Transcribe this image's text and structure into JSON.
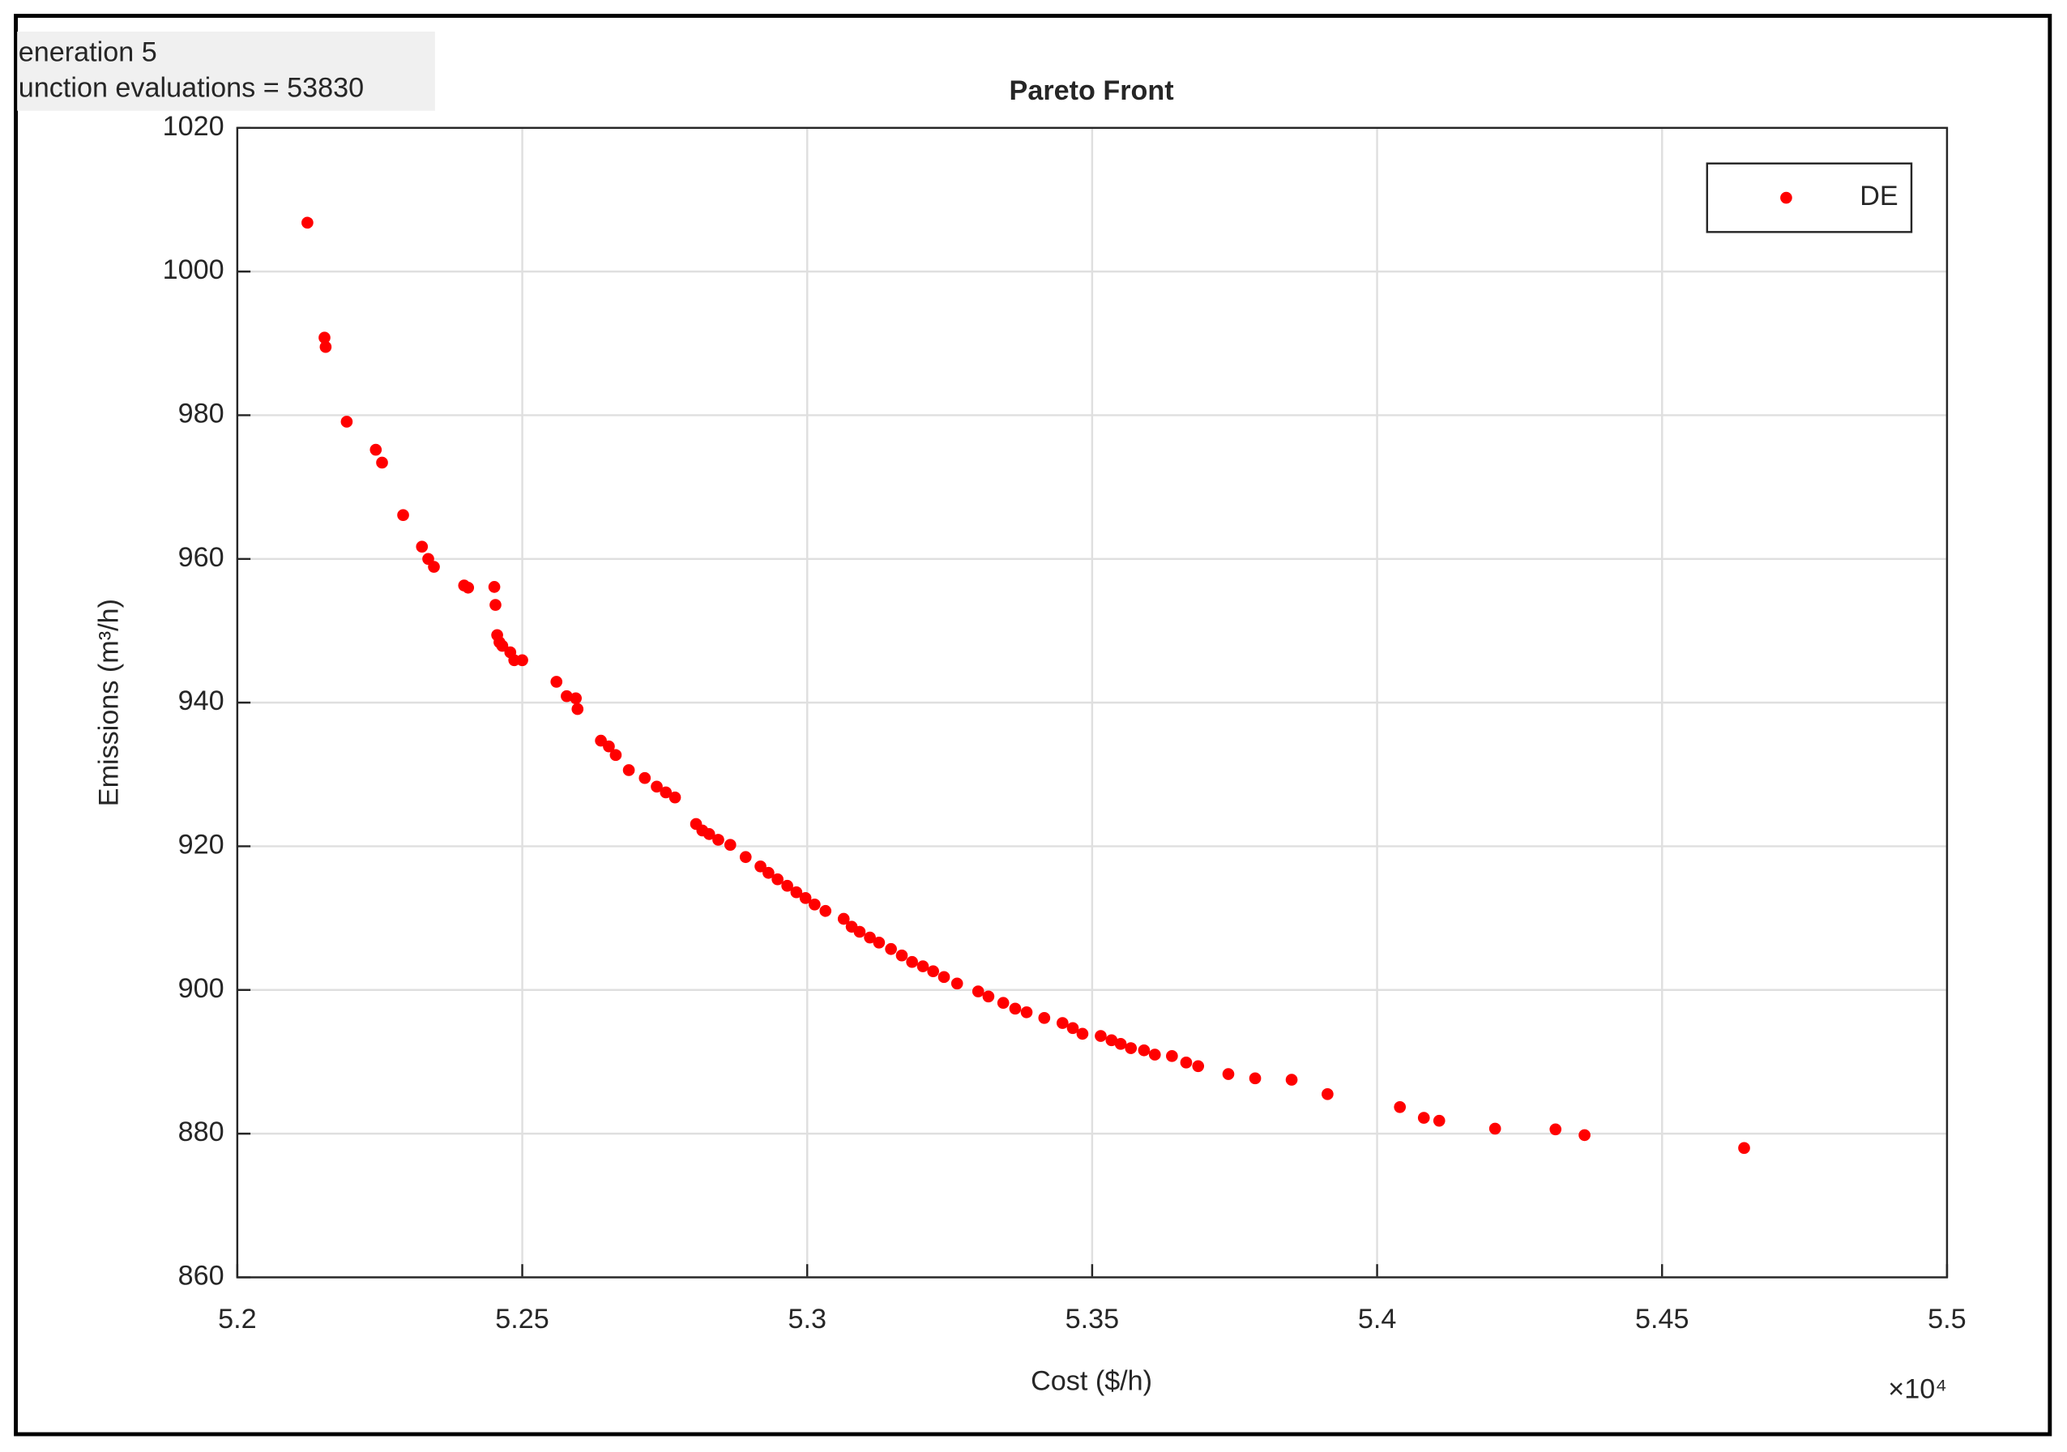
{
  "chart_data": {
    "type": "scatter",
    "title": "Pareto Front",
    "annotations": [
      "eneration 5",
      "unction evaluations = 53830"
    ],
    "xlabel": "Cost ($/h)",
    "ylabel": "Emissions (m³/h)",
    "x_multiplier": "×10⁴",
    "xlim": [
      5.2,
      5.5
    ],
    "xticks": [
      5.2,
      5.25,
      5.3,
      5.35,
      5.4,
      5.45,
      5.5
    ],
    "ylim": [
      860,
      1020
    ],
    "yticks": [
      860,
      880,
      900,
      920,
      940,
      960,
      980,
      1000,
      1020
    ],
    "grid": true,
    "legend": "upper right",
    "series": [
      {
        "name": "DE",
        "color": "#ff0000",
        "x": [
          5.2123,
          5.2153,
          5.2155,
          5.2192,
          5.2243,
          5.2254,
          5.2291,
          5.2324,
          5.2335,
          5.2345,
          5.2398,
          5.2405,
          5.2451,
          5.2453,
          5.2456,
          5.246,
          5.2465,
          5.2479,
          5.2486,
          5.25,
          5.256,
          5.2578,
          5.2594,
          5.2597,
          5.2638,
          5.2652,
          5.2664,
          5.2687,
          5.2715,
          5.2736,
          5.2752,
          5.2768,
          5.2805,
          5.2816,
          5.2828,
          5.2844,
          5.2865,
          5.2892,
          5.2918,
          5.2932,
          5.2948,
          5.2965,
          5.2981,
          5.2997,
          5.3013,
          5.3032,
          5.3064,
          5.3078,
          5.3092,
          5.311,
          5.3126,
          5.3147,
          5.3166,
          5.3184,
          5.3203,
          5.3221,
          5.324,
          5.3263,
          5.33,
          5.3318,
          5.3344,
          5.3365,
          5.3385,
          5.3416,
          5.3448,
          5.3466,
          5.3483,
          5.3515,
          5.3534,
          5.355,
          5.3568,
          5.3591,
          5.361,
          5.364,
          5.3665,
          5.3686,
          5.3739,
          5.3786,
          5.385,
          5.3913,
          5.404,
          5.4082,
          5.4109,
          5.4207,
          5.4313,
          5.4364,
          5.4644
        ],
        "values": [
          1006.8,
          990.8,
          989.5,
          979.1,
          975.2,
          973.4,
          966.1,
          961.7,
          960.0,
          958.9,
          956.3,
          956.0,
          956.1,
          953.6,
          949.4,
          948.4,
          947.9,
          947.0,
          945.9,
          945.9,
          942.9,
          940.9,
          940.6,
          939.1,
          934.7,
          933.9,
          932.7,
          930.6,
          929.5,
          928.3,
          927.5,
          926.8,
          923.1,
          922.2,
          921.7,
          920.9,
          920.2,
          918.5,
          917.2,
          916.3,
          915.4,
          914.5,
          913.6,
          912.8,
          911.9,
          911.0,
          909.9,
          908.8,
          908.1,
          907.3,
          906.6,
          905.7,
          904.8,
          903.9,
          903.3,
          902.6,
          901.8,
          900.9,
          899.8,
          899.1,
          898.2,
          897.4,
          896.9,
          896.1,
          895.4,
          894.7,
          893.9,
          893.6,
          893.0,
          892.5,
          891.9,
          891.6,
          891.0,
          890.8,
          889.9,
          889.4,
          888.3,
          887.7,
          887.5,
          885.5,
          883.7,
          882.2,
          881.8,
          880.7,
          880.6,
          879.8,
          878.0
        ]
      }
    ]
  }
}
